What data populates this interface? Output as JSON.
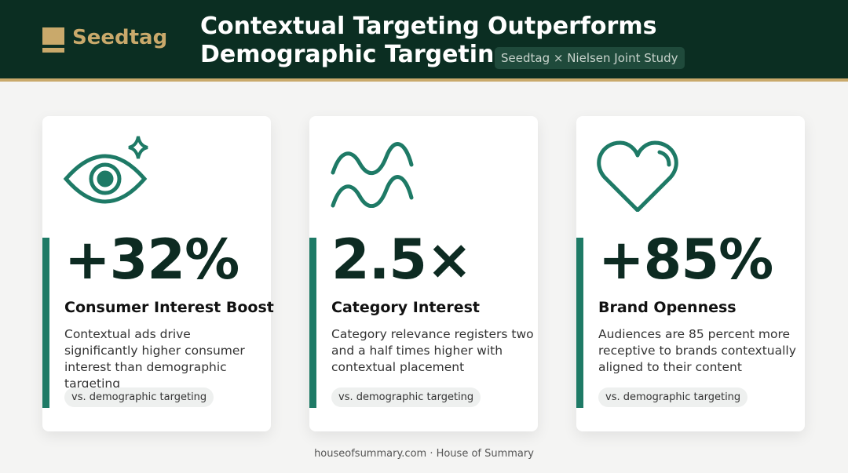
{
  "header": {
    "logo": "Seedtag",
    "title_lines": [
      "Contextual Targeting Outperforms",
      "Demographic Targeting"
    ],
    "badge": "Seedtag × Nielsen Joint Study"
  },
  "cards": [
    {
      "stat": "+32%",
      "title": "Consumer Interest Boost",
      "description": "Contextual ads drive significantly higher consumer interest than demographic targeting",
      "tag": "vs. demographic targeting"
    },
    {
      "stat": "2.5×",
      "title": "Category Interest",
      "description": "Category relevance registers two and a half times higher with contextual placement",
      "tag": "vs. demographic targeting"
    },
    {
      "stat": "+85%",
      "title": "Brand Openness",
      "description": "Audiences are 85 percent more receptive to brands contextually aligned to their content",
      "tag": "vs. demographic targeting"
    }
  ],
  "footer": "houseofsummary.com · House of Summary"
}
